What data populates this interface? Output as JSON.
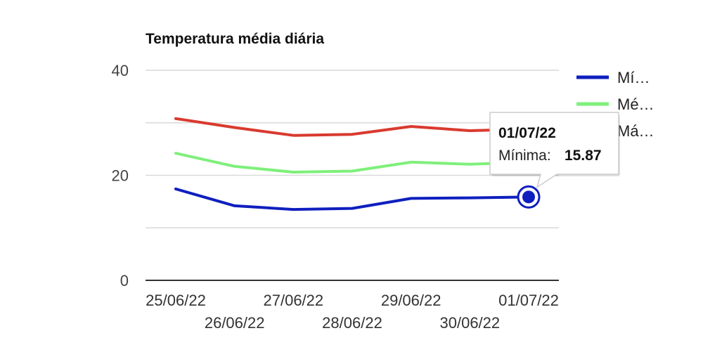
{
  "chart_data": {
    "type": "line",
    "title": "Temperatura média diária",
    "xlabel": "",
    "ylabel": "",
    "categories": [
      "25/06/22",
      "26/06/22",
      "27/06/22",
      "28/06/22",
      "29/06/22",
      "30/06/22",
      "01/07/22"
    ],
    "ylim": [
      0,
      40
    ],
    "yticks": [
      "0",
      "20",
      "40"
    ],
    "grid": true,
    "legend_position": "right",
    "series": [
      {
        "name": "Mí…",
        "color": "#0f1fbf",
        "values": [
          17.4,
          14.2,
          13.5,
          13.7,
          15.6,
          15.7,
          15.87
        ]
      },
      {
        "name": "Mé…",
        "color": "#7ef07a",
        "values": [
          24.2,
          21.7,
          20.6,
          20.8,
          22.5,
          22.1,
          22.5
        ]
      },
      {
        "name": "Má…",
        "color": "#d93a2e",
        "values": [
          30.8,
          29.1,
          27.6,
          27.8,
          29.3,
          28.5,
          28.8
        ]
      }
    ],
    "tooltip": {
      "date": "01/07/22",
      "label": "Mínima:",
      "value": "15.87",
      "series_index": 0,
      "point_index": 6
    }
  }
}
